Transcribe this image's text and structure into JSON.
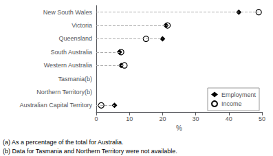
{
  "chart_data": {
    "type": "dot",
    "xlabel": "%",
    "categories": [
      "New South Wales",
      "Victoria",
      "Queensland",
      "South Australia",
      "Western Australia",
      "Tasmania(b)",
      "Northern Territory(b)",
      "Australian Capital Territory"
    ],
    "series": [
      {
        "name": "Employment",
        "color": "#000000",
        "marker": "diamond",
        "values": [
          43.0,
          21.0,
          20.0,
          7.0,
          7.5,
          null,
          null,
          5.5
        ]
      },
      {
        "name": "Income",
        "color": "#000000",
        "marker": "open_circle",
        "values": [
          49.0,
          21.5,
          15.0,
          7.5,
          8.5,
          null,
          null,
          1.5
        ]
      }
    ],
    "xlim": [
      0,
      50
    ],
    "xticks": [
      0,
      10,
      20,
      30,
      40,
      50
    ],
    "grid": false,
    "legend": "lower right",
    "line_style": "dashed",
    "annotations": [
      "(a) As a percentage of the total for Australia.",
      "(b) Data for Tasmania and Northern Territory were not available."
    ]
  }
}
